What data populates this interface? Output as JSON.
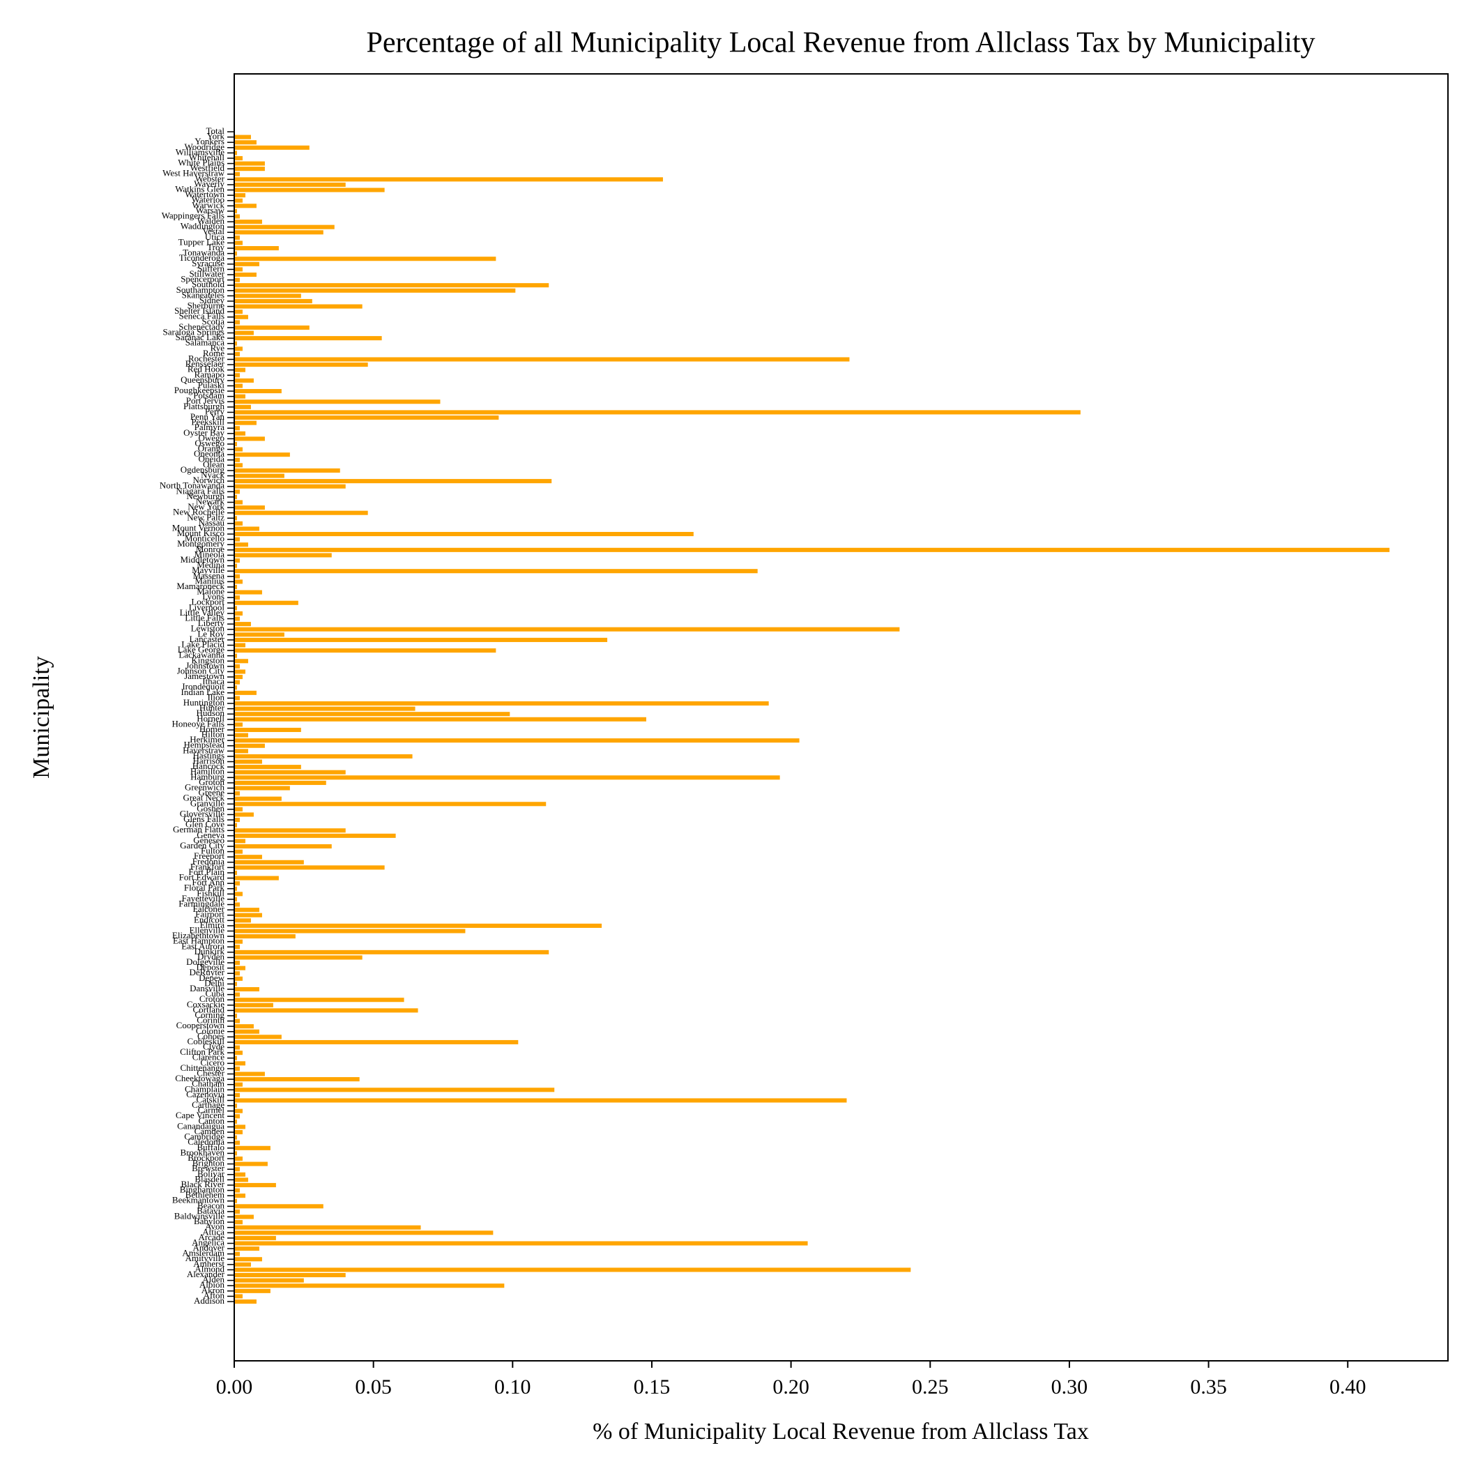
{
  "chart_data": {
    "type": "barh",
    "title": "Percentage of all Municipality Local Revenue from Allclass Tax by Municipality",
    "x_label": "% of Municipality Local Revenue from Allclass Tax",
    "y_label": "Municipality",
    "color": "#ffa500",
    "xlim": [
      0,
      0.436
    ],
    "xticks": [
      {
        "value": 0,
        "label": "0.00"
      },
      {
        "value": 0.05,
        "label": "0.05"
      },
      {
        "value": 0.1,
        "label": "0.10"
      },
      {
        "value": 0.15,
        "label": "0.15"
      },
      {
        "value": 0.2,
        "label": "0.20"
      },
      {
        "value": 0.25,
        "label": "0.25"
      },
      {
        "value": 0.3,
        "label": "0.30"
      },
      {
        "value": 0.35,
        "label": "0.35"
      },
      {
        "value": 0.4,
        "label": "0.40"
      }
    ],
    "categories": [
      "Addison",
      "Afton",
      "Akron",
      "Albion",
      "Alden",
      "Alexander",
      "Almond",
      "Amherst",
      "Amityville",
      "Amsterdam",
      "Andover",
      "Angelica",
      "Arcade",
      "Attica",
      "Avon",
      "Babylon",
      "Baldwinsville",
      "Batavia",
      "Beacon",
      "Beekmantown",
      "Bethlehem",
      "Binghamton",
      "Black River",
      "Blasdell",
      "Bolivar",
      "Brewster",
      "Brighton",
      "Brockport",
      "Brookhaven",
      "Buffalo",
      "Caledonia",
      "Cambridge",
      "Camden",
      "Canandaigua",
      "Canton",
      "Cape Vincent",
      "Carmel",
      "Carthage",
      "Catskill",
      "Cazenovia",
      "Champlain",
      "Chatham",
      "Cheektowaga",
      "Chester",
      "Chittenango",
      "Cicero",
      "Clarence",
      "Clifton Park",
      "Clyde",
      "Cobleskill",
      "Cohoes",
      "Colonie",
      "Cooperstown",
      "Corinth",
      "Corning",
      "Cortland",
      "Coxsackie",
      "Croton",
      "Cuba",
      "Dansville",
      "Delhi",
      "Depew",
      "DeRuyter",
      "Deposit",
      "Dolgeville",
      "Dryden",
      "Dunkirk",
      "East Aurora",
      "East Hampton",
      "Elizabethtown",
      "Ellenville",
      "Elmira",
      "Endicott",
      "Fairport",
      "Falconer",
      "Farmingdale",
      "Fayetteville",
      "Fishkill",
      "Floral Park",
      "Fort Ann",
      "Fort Edward",
      "Fort Plain",
      "Frankfort",
      "Fredonia",
      "Freeport",
      "Fulton",
      "Garden City",
      "Geneseo",
      "Geneva",
      "German Flatts",
      "Glen Cove",
      "Glens Falls",
      "Gloversville",
      "Goshen",
      "Granville",
      "Great Neck",
      "Greene",
      "Greenwich",
      "Groton",
      "Hamburg",
      "Hamilton",
      "Hancock",
      "Harrison",
      "Hastings",
      "Haverstraw",
      "Hempstead",
      "Herkimer",
      "Hilton",
      "Homer",
      "Honeoye Falls",
      "Hornell",
      "Hudson",
      "Hunter",
      "Huntington",
      "Ilion",
      "Indian Lake",
      "Irondequoit",
      "Ithaca",
      "Jamestown",
      "Johnson City",
      "Johnstown",
      "Kingston",
      "Lackawanna",
      "Lake George",
      "Lake Placid",
      "Lancaster",
      "Le Roy",
      "Lewiston",
      "Liberty",
      "Little Falls",
      "Little Valley",
      "Liverpool",
      "Lockport",
      "Lyons",
      "Malone",
      "Mamaroneck",
      "Manlius",
      "Massena",
      "Mayville",
      "Medina",
      "Middletown",
      "Mineola",
      "Monroe",
      "Montgomery",
      "Monticello",
      "Mount Kisco",
      "Mount Vernon",
      "Nassau",
      "New Paltz",
      "New Rochelle",
      "New York",
      "Newark",
      "Newburgh",
      "Niagara Falls",
      "North Tonawanda",
      "Norwich",
      "Nyack",
      "Ogdensburg",
      "Olean",
      "Oneida",
      "Oneonta",
      "Orange",
      "Oswego",
      "Owego",
      "Oyster Bay",
      "Palmyra",
      "Peekskill",
      "Penn Yan",
      "Perry",
      "Plattsburgh",
      "Port Jervis",
      "Potsdam",
      "Poughkeepsie",
      "Pulaski",
      "Queensbury",
      "Ramapo",
      "Red Hook",
      "Rensselaer",
      "Rochester",
      "Rome",
      "Rye",
      "Salamanca",
      "Saranac Lake",
      "Saratoga Springs",
      "Schenectady",
      "Scotia",
      "Seneca Falls",
      "Shelter Island",
      "Sherburne",
      "Sidney",
      "Skaneateles",
      "Southampton",
      "Southold",
      "Spencerport",
      "Stillwater",
      "Suffern",
      "Syracuse",
      "Ticonderoga",
      "Tonawanda",
      "Troy",
      "Tupper Lake",
      "Utica",
      "Vestal",
      "Waddington",
      "Walden",
      "Wappingers Falls",
      "Warsaw",
      "Warwick",
      "Waterloo",
      "Watertown",
      "Watkins Glen",
      "Waverly",
      "Webster",
      "West Haverstraw",
      "Westfield",
      "White Plains",
      "Whitehall",
      "Williamsville",
      "Woodridge",
      "Yonkers",
      "York",
      "Total"
    ],
    "values": [
      0.008,
      0.003,
      0.013,
      0.097,
      0.025,
      0.04,
      0.243,
      0.006,
      0.01,
      0.002,
      0.009,
      0.206,
      0.015,
      0.093,
      0.067,
      0.003,
      0.007,
      0.002,
      0.032,
      0.001,
      0.004,
      0.002,
      0.015,
      0.005,
      0.004,
      0.002,
      0.012,
      0.003,
      0.001,
      0.013,
      0.002,
      0.001,
      0.003,
      0.004,
      0.001,
      0.002,
      0.003,
      0.001,
      0.22,
      0.002,
      0.115,
      0.003,
      0.045,
      0.011,
      0.002,
      0.004,
      0.001,
      0.003,
      0.002,
      0.102,
      0.017,
      0.009,
      0.007,
      0.002,
      0.001,
      0.066,
      0.014,
      0.061,
      0.002,
      0.009,
      0.001,
      0.003,
      0.002,
      0.004,
      0.002,
      0.046,
      0.113,
      0.002,
      0.003,
      0.022,
      0.083,
      0.132,
      0.006,
      0.01,
      0.009,
      0.002,
      0.001,
      0.003,
      0.001,
      0.002,
      0.016,
      0.001,
      0.054,
      0.025,
      0.01,
      0.003,
      0.035,
      0.004,
      0.058,
      0.04,
      0.001,
      0.002,
      0.007,
      0.003,
      0.112,
      0.017,
      0.002,
      0.02,
      0.033,
      0.196,
      0.04,
      0.024,
      0.01,
      0.064,
      0.005,
      0.011,
      0.203,
      0.005,
      0.024,
      0.003,
      0.148,
      0.099,
      0.065,
      0.192,
      0.002,
      0.008,
      0.001,
      0.002,
      0.003,
      0.004,
      0.002,
      0.005,
      0.001,
      0.094,
      0.004,
      0.134,
      0.018,
      0.239,
      0.006,
      0.002,
      0.003,
      0.001,
      0.023,
      0.002,
      0.01,
      0.001,
      0.003,
      0.002,
      0.188,
      0.001,
      0.002,
      0.035,
      0.415,
      0.005,
      0.002,
      0.165,
      0.009,
      0.003,
      0.001,
      0.048,
      0.011,
      0.003,
      0.001,
      0.002,
      0.04,
      0.114,
      0.018,
      0.038,
      0.003,
      0.002,
      0.02,
      0.003,
      0.001,
      0.011,
      0.004,
      0.002,
      0.008,
      0.095,
      0.304,
      0.006,
      0.074,
      0.004,
      0.017,
      0.003,
      0.007,
      0.002,
      0.004,
      0.048,
      0.221,
      0.002,
      0.003,
      0.001,
      0.053,
      0.007,
      0.027,
      0.002,
      0.005,
      0.003,
      0.046,
      0.028,
      0.024,
      0.101,
      0.113,
      0.002,
      0.008,
      0.003,
      0.009,
      0.094,
      0.001,
      0.016,
      0.003,
      0.002,
      0.032,
      0.036,
      0.01,
      0.002,
      0.001,
      0.008,
      0.003,
      0.004,
      0.054,
      0.04,
      0.154,
      0.002,
      0.011,
      0.011,
      0.003,
      0.001,
      0.027,
      0.008,
      0.006,
      0
    ]
  }
}
